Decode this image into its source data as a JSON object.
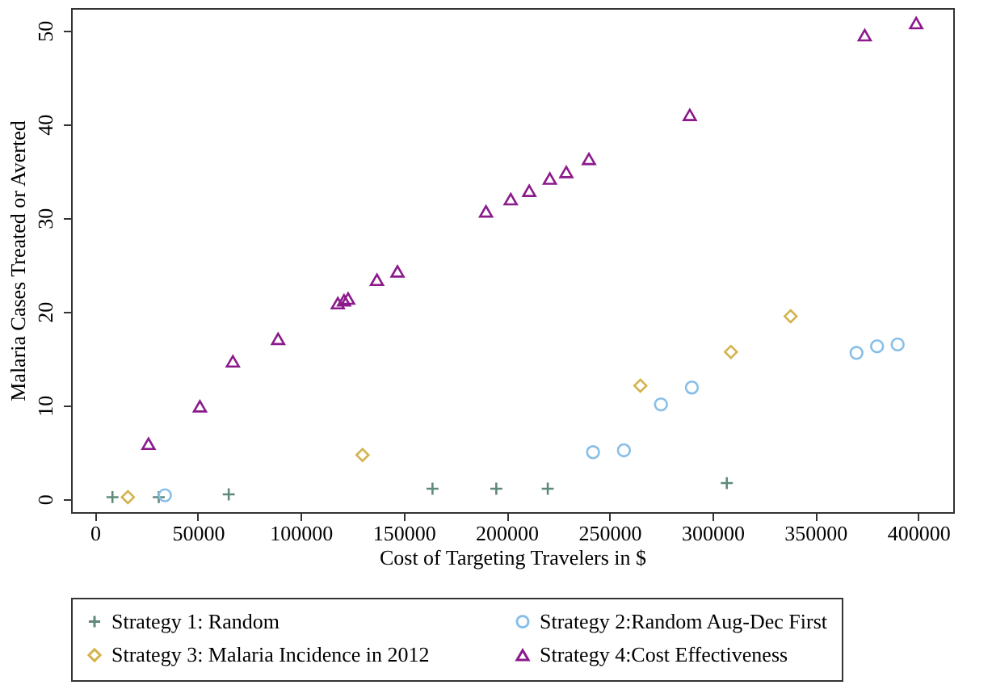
{
  "chart_data": {
    "type": "scatter",
    "xlabel": "Cost of Targeting Travelers in $",
    "ylabel": "Malaria Cases Treated or Averted",
    "xlim": [
      -11600,
      417000
    ],
    "xticks": [
      0,
      50000,
      100000,
      150000,
      200000,
      250000,
      300000,
      350000,
      400000
    ],
    "ylim": [
      -1.4,
      52.4
    ],
    "yticks": [
      0,
      10,
      20,
      30,
      40,
      50
    ],
    "grid": false,
    "legend": "bottom",
    "series": [
      {
        "name": "Strategy 1: Random",
        "color": "#5f8a7a",
        "marker": "cross",
        "x": [
          8500,
          31000,
          65000,
          164000,
          195000,
          220000,
          307000
        ],
        "values": [
          0.2,
          0.2,
          0.5,
          1.1,
          1.1,
          1.1,
          1.7
        ]
      },
      {
        "name": "Strategy 2:Random Aug-Dec First",
        "color": "#87bfe8",
        "marker": "circle",
        "x": [
          34000,
          242000,
          257000,
          275000,
          290000,
          370000,
          380000,
          390000
        ],
        "values": [
          0.4,
          5.0,
          5.2,
          10.1,
          11.9,
          15.6,
          16.3,
          16.5
        ]
      },
      {
        "name": "Strategy 3: Malaria Incidence in 2012",
        "color": "#d4b24c",
        "marker": "diamond",
        "x": [
          16000,
          130000,
          265000,
          309000,
          338000
        ],
        "values": [
          0.2,
          4.7,
          12.1,
          15.7,
          19.5
        ]
      },
      {
        "name": "Strategy 4:Cost Effectiveness",
        "color": "#8b1a8b",
        "marker": "triangle",
        "x": [
          26000,
          51000,
          67000,
          89000,
          118000,
          121000,
          123000,
          137000,
          147000,
          190000,
          202000,
          211000,
          221000,
          229000,
          240000,
          289000,
          374000,
          399000
        ],
        "values": [
          5.9,
          9.9,
          14.7,
          17.1,
          20.9,
          21.2,
          21.4,
          23.4,
          24.3,
          30.7,
          32.0,
          32.9,
          34.2,
          34.9,
          36.3,
          41.0,
          49.5,
          50.8
        ]
      }
    ]
  }
}
